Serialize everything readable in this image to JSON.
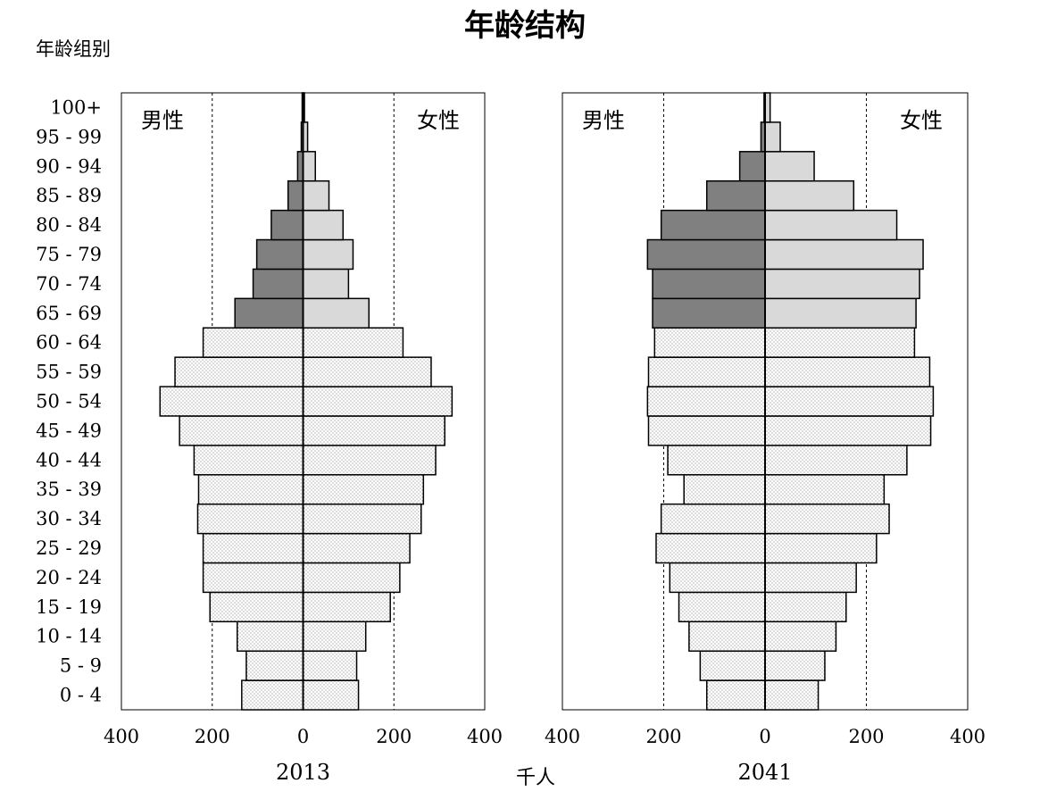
{
  "title": "年龄结构",
  "y_axis_label": "年龄组别",
  "x_axis_label": "千人",
  "colors": {
    "elderly_male": "#808080",
    "elderly_female": "#d9d9d9",
    "working_fill": "#ffffff",
    "stroke": "#000000"
  },
  "chart_data": {
    "type": "bar",
    "orientation": "horizontal",
    "subtype": "population-pyramid",
    "categories": [
      "0 - 4",
      "5 - 9",
      "10 - 14",
      "15 - 19",
      "20 - 24",
      "25 - 29",
      "30 - 34",
      "35 - 39",
      "40 - 44",
      "45 - 49",
      "50 - 54",
      "55 - 59",
      "60 - 64",
      "65 - 69",
      "70 - 74",
      "75 - 79",
      "80 - 84",
      "85 - 89",
      "90 - 94",
      "95 - 99",
      "100+"
    ],
    "xlim": [
      -400,
      400
    ],
    "x_ticks": [
      400,
      200,
      0,
      200,
      400
    ],
    "panels": [
      {
        "year": "2013",
        "male_label": "男性",
        "female_label": "女性",
        "male": [
          135,
          125,
          145,
          205,
          220,
          220,
          232,
          230,
          240,
          272,
          315,
          282,
          220,
          150,
          110,
          102,
          70,
          33,
          12,
          4,
          2
        ],
        "female": [
          122,
          118,
          138,
          192,
          213,
          235,
          260,
          265,
          292,
          312,
          328,
          282,
          220,
          145,
          100,
          110,
          88,
          57,
          27,
          10,
          3
        ]
      },
      {
        "year": "2041",
        "male_label": "男性",
        "female_label": "女性",
        "male": [
          115,
          128,
          150,
          170,
          188,
          215,
          205,
          160,
          192,
          230,
          232,
          230,
          218,
          222,
          222,
          232,
          205,
          115,
          50,
          8,
          2
        ],
        "female": [
          105,
          118,
          140,
          160,
          180,
          220,
          245,
          235,
          280,
          327,
          332,
          325,
          295,
          298,
          305,
          312,
          260,
          175,
          97,
          30,
          10
        ]
      }
    ]
  }
}
